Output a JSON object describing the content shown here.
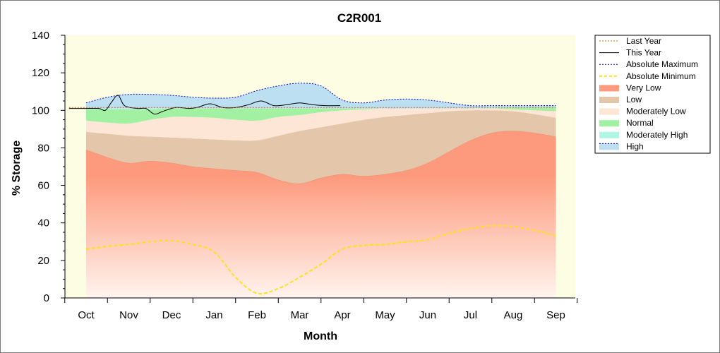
{
  "chart_data": {
    "type": "area",
    "title": "C2R001",
    "xlabel": "Month",
    "ylabel": "% Storage",
    "ylim": [
      0,
      140
    ],
    "yticks": [
      0,
      20,
      40,
      60,
      80,
      100,
      120,
      140
    ],
    "categories": [
      "Oct",
      "Nov",
      "Dec",
      "Jan",
      "Feb",
      "Mar",
      "Apr",
      "May",
      "Jun",
      "Jul",
      "Aug",
      "Sep"
    ],
    "legend_position": "right",
    "colors": {
      "plot_bg": "#fdfde4",
      "very_low_top": "#fd9a7d",
      "very_low_bottom": "#fff4ef",
      "low": "#e4c7aa",
      "moderately_low": "#fde6d6",
      "normal": "#a2f0a2",
      "moderately_high": "#b0f5e3",
      "high": "#bcdff2",
      "last_year": "#d2691e",
      "this_year": "#000000",
      "abs_max": "#0000cc",
      "abs_min": "#ffe01a"
    },
    "legend": [
      {
        "key": "last_year",
        "label": "Last Year",
        "style": "dotted-line"
      },
      {
        "key": "this_year",
        "label": "This Year",
        "style": "line"
      },
      {
        "key": "abs_max",
        "label": "Absolute Maximum",
        "style": "dotted-line"
      },
      {
        "key": "abs_min",
        "label": "Absolute Minimum",
        "style": "dashed-line"
      },
      {
        "key": "very_low",
        "label": "Very Low",
        "style": "fill"
      },
      {
        "key": "low",
        "label": "Low",
        "style": "fill"
      },
      {
        "key": "moderately_low",
        "label": "Moderately Low",
        "style": "fill"
      },
      {
        "key": "normal",
        "label": "Normal",
        "style": "fill"
      },
      {
        "key": "moderately_high",
        "label": "Moderately High",
        "style": "fill"
      },
      {
        "key": "high",
        "label": "High",
        "style": "dotted-fill"
      }
    ],
    "band_x": [
      0,
      0.5,
      1,
      1.5,
      2,
      2.5,
      3,
      3.5,
      4,
      4.5,
      5,
      5.5,
      6,
      6.5,
      7,
      7.5,
      8,
      8.5,
      9,
      9.5,
      10,
      10.5,
      11
    ],
    "bands": {
      "very_low_top": [
        79,
        75,
        72,
        73,
        72,
        70,
        69,
        68,
        67,
        63,
        61,
        64,
        66,
        65,
        66,
        68,
        72,
        78,
        84,
        88,
        89,
        88,
        86
      ],
      "low_top": [
        88.5,
        87.5,
        86.5,
        86,
        85.5,
        85,
        84.5,
        84,
        84,
        86.5,
        89,
        91,
        93,
        95,
        96.5,
        97.5,
        98.5,
        99.5,
        100,
        100,
        99.5,
        98,
        96
      ],
      "moderately_low_top": [
        94.5,
        93.5,
        93,
        95,
        96.5,
        96.5,
        96,
        95,
        94.5,
        96.5,
        97.5,
        99,
        100,
        100.5,
        101,
        101,
        101,
        101,
        101,
        101,
        100.5,
        100,
        99.5
      ],
      "normal_top": [
        100.5,
        100.5,
        100.5,
        100.5,
        101,
        101,
        101,
        101,
        101,
        101,
        101,
        101,
        101,
        101,
        101,
        101,
        101,
        101,
        101,
        101,
        101.5,
        101.5,
        101.5
      ],
      "moderately_high_top": [
        101,
        101,
        101,
        101,
        101,
        101,
        101,
        101,
        101,
        101,
        101,
        101,
        101,
        101,
        101,
        101,
        101,
        101,
        101,
        101.5,
        101.5,
        101.5,
        101.5
      ],
      "high_top": [
        104,
        107,
        108.5,
        108.5,
        108,
        107,
        106.5,
        107,
        110.5,
        113,
        114.5,
        113,
        105.5,
        104,
        105.5,
        106,
        105.5,
        104,
        102.5,
        102.5,
        102.5,
        102.5,
        102.5
      ]
    },
    "series": [
      {
        "key": "abs_min",
        "name": "Absolute Minimum",
        "x": [
          0,
          0.5,
          1,
          1.5,
          2,
          2.5,
          3,
          3.5,
          4,
          4.5,
          5,
          5.5,
          6,
          6.5,
          7,
          7.5,
          8,
          8.5,
          9,
          9.5,
          10,
          10.5,
          11
        ],
        "y": [
          26,
          27.5,
          28.5,
          30,
          30.5,
          28.5,
          24.5,
          11,
          2.5,
          5,
          11,
          18,
          26,
          28,
          28.5,
          30,
          31,
          34.5,
          37,
          38.5,
          38,
          36,
          33
        ]
      },
      {
        "key": "this_year",
        "name": "This Year",
        "x": [
          -0.4,
          0,
          0.3,
          0.45,
          0.6,
          0.75,
          0.9,
          1.2,
          1.4,
          1.6,
          1.8,
          2.1,
          2.4,
          2.6,
          2.9,
          3.2,
          3.5,
          3.8,
          4.1,
          4.4,
          4.7,
          5.0,
          5.3,
          5.6,
          5.95
        ],
        "y": [
          101,
          101,
          101,
          100,
          104.5,
          108,
          102.5,
          101,
          101,
          98,
          99.5,
          101.5,
          101,
          101.5,
          103.5,
          101.5,
          101.5,
          103,
          105,
          102.5,
          103,
          104,
          103,
          102.5,
          102.5
        ]
      },
      {
        "key": "last_year",
        "name": "Last Year",
        "x": [
          -0.4,
          11
        ],
        "y": [
          101.5,
          101.5
        ]
      }
    ]
  }
}
